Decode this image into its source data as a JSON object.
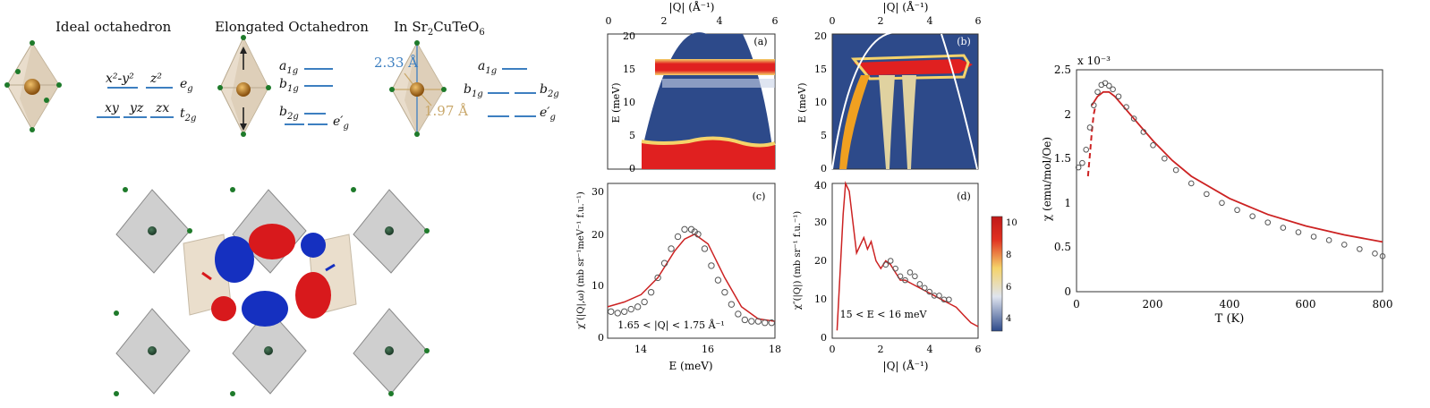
{
  "left_panel": {
    "titles": {
      "ideal": "Ideal octahedron",
      "elongated": "Elongated Octahedron",
      "in_compound_prefix": "In Sr",
      "in_compound_sub1": "2",
      "in_compound_mid": "CuTeO",
      "in_compound_sub2": "6"
    },
    "ideal_levels": {
      "eg_orbitals": [
        "x²-y²",
        "z²"
      ],
      "eg_label": "e",
      "eg_sub": "g",
      "t2g_orbitals": [
        "xy",
        "yz",
        "zx"
      ],
      "t2g_label": "t",
      "t2g_sub": "2g"
    },
    "elongated_levels": {
      "a1g": "a",
      "a1g_sub": "1g",
      "b1g": "b",
      "b1g_sub": "1g",
      "b2g": "b",
      "b2g_sub": "2g",
      "eg": "e′",
      "eg_sub": "g"
    },
    "compound_levels": {
      "long_bond": "2.33 Å",
      "short_bond": "1.97 Å",
      "a1g": "a",
      "a1g_sub": "1g",
      "b1g": "b",
      "b1g_sub": "1g",
      "b2g": "b",
      "b2g_sub": "2g",
      "eg": "e′",
      "eg_sub": "g"
    },
    "colors": {
      "level_bar": "#3d7fc0",
      "bond_long": "#3d7fc0",
      "bond_short": "#c9a86b",
      "copper": "#b8771f",
      "oxygen": "#2e7d32",
      "orbital_red": "#d8191c",
      "orbital_blue": "#1530c0"
    }
  },
  "panels": {
    "a": {
      "label": "(a)",
      "top_axis_label": "|Q| (Å⁻¹)",
      "top_ticks": [
        "0",
        "2",
        "4",
        "6"
      ],
      "y_label": "E (meV)",
      "y_ticks": [
        "0",
        "5",
        "10",
        "15",
        "20"
      ]
    },
    "b": {
      "label": "(b)",
      "top_axis_label": "|Q| (Å⁻¹)",
      "top_ticks": [
        "0",
        "2",
        "4",
        "6"
      ],
      "y_label": "E (meV)",
      "y_ticks": [
        "0",
        "5",
        "10",
        "15",
        "20"
      ]
    },
    "c": {
      "label": "(c)",
      "y_label": "χ″(|Q|,ω) (mb sr⁻¹meV⁻¹ f.u.⁻¹)",
      "y_ticks": [
        "0",
        "10",
        "20",
        "30"
      ],
      "x_label": "E (meV)",
      "x_ticks": [
        "14",
        "16",
        "18"
      ],
      "annotation": "1.65 < |Q| < 1.75 Å⁻¹"
    },
    "d": {
      "label": "(d)",
      "y_label": "χ″(|Q|) (mb sr⁻¹ f.u.⁻¹)",
      "y_ticks": [
        "0",
        "10",
        "20",
        "30",
        "40"
      ],
      "x_label": "|Q| (Å⁻¹)",
      "x_ticks": [
        "0",
        "2",
        "4",
        "6"
      ],
      "annotation": "15 < E < 16 meV"
    },
    "colorbar": {
      "ticks": [
        "4",
        "6",
        "8",
        "10"
      ]
    }
  },
  "chart_data": [
    {
      "type": "scatter",
      "panel": "(c)",
      "xlabel": "E (meV)",
      "ylabel": "χ″(|Q|,ω) (mb sr⁻¹meV⁻¹ f.u.⁻¹)",
      "xlim": [
        13,
        18
      ],
      "ylim": [
        0,
        32
      ],
      "series": [
        {
          "kind": "points",
          "x": [
            13.1,
            13.3,
            13.5,
            13.7,
            13.9,
            14.1,
            14.3,
            14.5,
            14.7,
            14.9,
            15.1,
            15.3,
            15.5,
            15.6,
            15.7,
            15.9,
            16.1,
            16.3,
            16.5,
            16.7,
            16.9,
            17.1,
            17.3,
            17.5,
            17.7,
            17.9
          ],
          "y": [
            5.5,
            5.2,
            5.5,
            6.0,
            6.5,
            7.5,
            9.5,
            12.5,
            15.5,
            18.5,
            21,
            22.5,
            22.5,
            22,
            21.5,
            18.5,
            15,
            12,
            9.5,
            7,
            5,
            3.8,
            3.5,
            3.5,
            3.2,
            3.2
          ]
        },
        {
          "kind": "line",
          "x": [
            13,
            13.5,
            14,
            14.5,
            15,
            15.3,
            15.6,
            16,
            16.5,
            17,
            17.5,
            18
          ],
          "y": [
            6.5,
            7.5,
            9,
            12.5,
            18,
            20.5,
            21.5,
            19.5,
            12.5,
            6.5,
            4,
            3.5
          ]
        }
      ]
    },
    {
      "type": "line",
      "panel": "(d)",
      "xlabel": "|Q| (Å⁻¹)",
      "ylabel": "χ″(|Q|) (mb sr⁻¹ f.u.⁻¹)",
      "xlim": [
        0,
        6
      ],
      "ylim": [
        0,
        40
      ],
      "series": [
        {
          "kind": "line",
          "x": [
            0.2,
            0.45,
            0.55,
            0.7,
            0.85,
            1.0,
            1.15,
            1.3,
            1.45,
            1.6,
            1.8,
            2.0,
            2.2,
            2.4,
            2.6,
            2.8,
            3.0,
            3.3,
            3.6,
            3.9,
            4.2,
            4.5,
            4.8,
            5.1,
            5.4,
            5.7,
            6.0
          ],
          "y": [
            2,
            32,
            40,
            38,
            30,
            22,
            24,
            26,
            23,
            25,
            20,
            18,
            20,
            19,
            17,
            15,
            15,
            14,
            13,
            12,
            11,
            10,
            9,
            8,
            6,
            4,
            3
          ]
        },
        {
          "kind": "points",
          "x": [
            2.2,
            2.4,
            2.6,
            2.8,
            3.0,
            3.2,
            3.4,
            3.6,
            3.8,
            4.0,
            4.2,
            4.4,
            4.6,
            4.8
          ],
          "y": [
            19,
            20,
            18,
            16,
            15,
            17,
            16,
            14,
            13,
            12,
            11,
            11,
            10,
            10
          ]
        }
      ]
    },
    {
      "type": "scatter",
      "panel": "susceptibility",
      "xlabel": "T (K)",
      "ylabel": "χ (emu/mol/Oe)",
      "y_multiplier": "x 10⁻³",
      "xlim": [
        0,
        800
      ],
      "ylim": [
        0,
        2.5
      ],
      "x_ticks": [
        "0",
        "200",
        "400",
        "600",
        "800"
      ],
      "y_ticks": [
        "0",
        "0.5",
        "1",
        "1.5",
        "2",
        "2.5"
      ],
      "series": [
        {
          "kind": "points",
          "x": [
            5,
            15,
            25,
            35,
            45,
            55,
            65,
            75,
            85,
            95,
            110,
            130,
            150,
            175,
            200,
            230,
            260,
            300,
            340,
            380,
            420,
            460,
            500,
            540,
            580,
            620,
            660,
            700,
            740,
            780,
            800
          ],
          "y": [
            1.4,
            1.45,
            1.6,
            1.85,
            2.1,
            2.25,
            2.33,
            2.35,
            2.32,
            2.28,
            2.2,
            2.08,
            1.95,
            1.8,
            1.65,
            1.5,
            1.37,
            1.22,
            1.1,
            1.0,
            0.92,
            0.85,
            0.78,
            0.72,
            0.67,
            0.62,
            0.58,
            0.53,
            0.48,
            0.43,
            0.4
          ]
        },
        {
          "kind": "line",
          "x": [
            40,
            55,
            70,
            85,
            100,
            120,
            150,
            200,
            250,
            300,
            400,
            500,
            600,
            700,
            800
          ],
          "y": [
            2.1,
            2.2,
            2.25,
            2.25,
            2.2,
            2.1,
            1.95,
            1.7,
            1.48,
            1.3,
            1.05,
            0.87,
            0.74,
            0.64,
            0.56
          ]
        },
        {
          "kind": "dashed",
          "x": [
            30,
            35,
            40,
            45,
            50
          ],
          "y": [
            1.3,
            1.55,
            1.8,
            2.0,
            2.1
          ]
        }
      ]
    }
  ]
}
